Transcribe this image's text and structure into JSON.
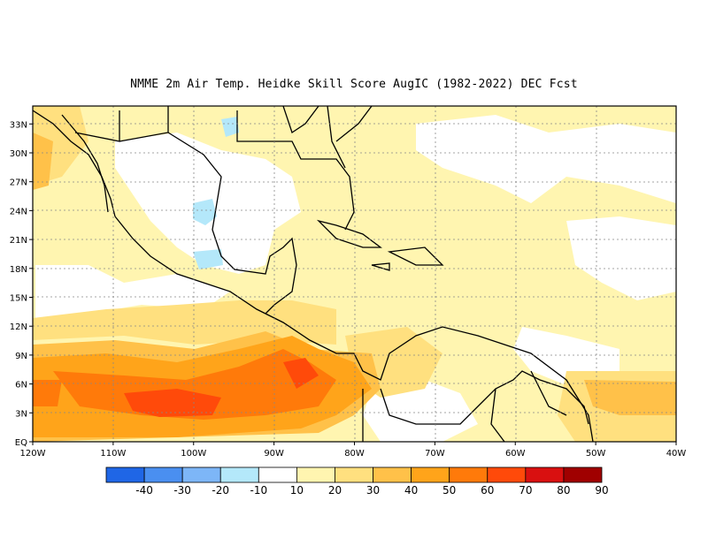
{
  "title": "NMME  2m Air Temp. Heidke Skill Score AugIC (1982-2022) DEC Fcst",
  "map": {
    "lon_range": [
      -120,
      -40
    ],
    "lat_range": [
      0,
      35
    ],
    "lon_ticks": [
      "120W",
      "110W",
      "100W",
      "90W",
      "80W",
      "70W",
      "60W",
      "50W",
      "40W"
    ],
    "lat_ticks": [
      "EQ",
      "3N",
      "6N",
      "9N",
      "12N",
      "15N",
      "18N",
      "21N",
      "24N",
      "27N",
      "30N",
      "33N"
    ],
    "grid": true
  },
  "colorbar": {
    "labels": [
      "-40",
      "-30",
      "-20",
      "-10",
      "10",
      "20",
      "30",
      "40",
      "50",
      "60",
      "70",
      "80",
      "90"
    ],
    "colors": [
      "#1f66e6",
      "#4a8ff0",
      "#7db6f7",
      "#b4e8fa",
      "#ffffff",
      "#fff5b0",
      "#ffe07f",
      "#ffc149",
      "#ffa41a",
      "#ff7a0a",
      "#ff4a0a",
      "#d91010",
      "#a00000"
    ]
  }
}
